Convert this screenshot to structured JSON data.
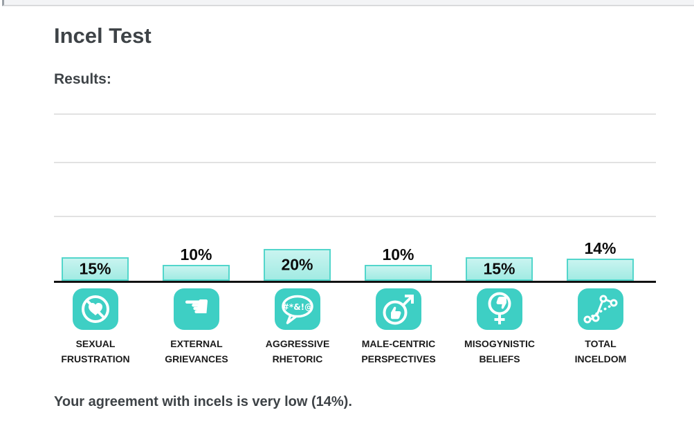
{
  "page": {
    "title": "Incel Test",
    "results_heading": "Results:",
    "summary_text": "Your agreement with incels is very low (14%)."
  },
  "chart_data": {
    "type": "bar",
    "title": "",
    "categories": [
      "SEXUAL FRUSTRATION",
      "EXTERNAL GRIEVANCES",
      "AGGRESSIVE RHETORIC",
      "MALE-CENTRIC PERSPECTIVES",
      "MISOGYNISTIC BELIEFS",
      "TOTAL INCELDOM"
    ],
    "values": [
      15,
      10,
      20,
      10,
      15,
      14
    ],
    "ylim": [
      0,
      100
    ],
    "grid": true,
    "legend_position": "none",
    "bars": [
      {
        "label_line1": "SEXUAL",
        "label_line2": "FRUSTRATION",
        "value": 15,
        "display": "15%",
        "label_inside": true,
        "icon": "no-heart-icon"
      },
      {
        "label_line1": "EXTERNAL",
        "label_line2": "GRIEVANCES",
        "value": 10,
        "display": "10%",
        "label_inside": false,
        "icon": "pointing-hand-icon"
      },
      {
        "label_line1": "AGGRESSIVE",
        "label_line2": "RHETORIC",
        "value": 20,
        "display": "20%",
        "label_inside": true,
        "icon": "profanity-speech-bubble-icon"
      },
      {
        "label_line1": "MALE-CENTRIC",
        "label_line2": "PERSPECTIVES",
        "value": 10,
        "display": "10%",
        "label_inside": false,
        "icon": "male-symbol-thumbs-up-icon"
      },
      {
        "label_line1": "MISOGYNISTIC",
        "label_line2": "BELIEFS",
        "value": 15,
        "display": "15%",
        "label_inside": true,
        "icon": "female-symbol-thumbs-down-icon"
      },
      {
        "label_line1": "TOTAL",
        "label_line2": "INCELDOM",
        "value": 14,
        "display": "14%",
        "label_inside": false,
        "icon": "trend-line-graph-icon"
      }
    ],
    "colors": {
      "bar_fill_top": "#c9f4f0",
      "bar_fill_bottom": "#a2ebe3",
      "bar_border": "#52d6cb",
      "icon_background": "#3ecfc4",
      "icon_glyph": "#ffffff",
      "axis_line": "#111111",
      "gridline": "#e2e2e2",
      "heading_text": "#3e4347",
      "value_text": "#0d0d0d",
      "category_text": "#1b1b1b"
    }
  }
}
